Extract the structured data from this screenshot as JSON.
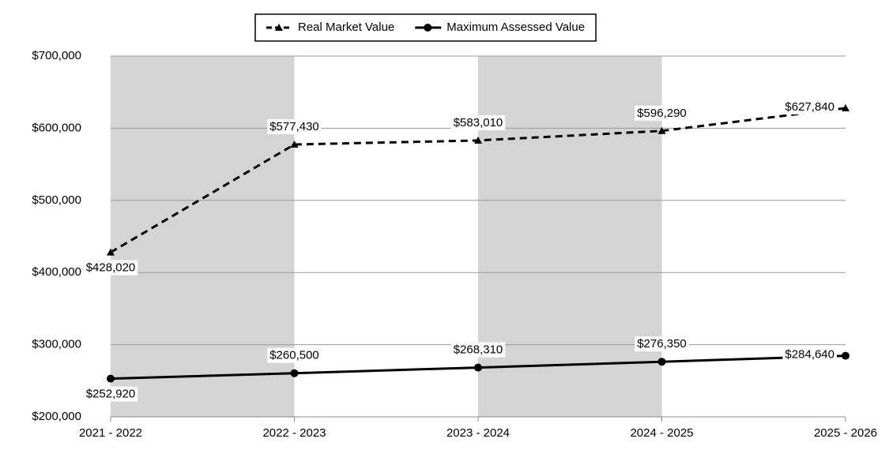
{
  "chart_data": {
    "type": "line",
    "categories": [
      "2021 - 2022",
      "2022 - 2023",
      "2023 - 2024",
      "2024 - 2025",
      "2025 - 2026"
    ],
    "series": [
      {
        "name": "Real Market Value",
        "color": "#000000",
        "dash": true,
        "marker": "triangle",
        "values": [
          428020,
          577430,
          583010,
          596290,
          627840
        ],
        "value_labels": [
          "$428,020",
          "$577,430",
          "$583,010",
          "$596,290",
          "$627,840"
        ]
      },
      {
        "name": "Maximum Assessed Value",
        "color": "#000000",
        "dash": false,
        "marker": "circle",
        "values": [
          252920,
          260500,
          268310,
          276350,
          284640
        ],
        "value_labels": [
          "$252,920",
          "$260,500",
          "$268,310",
          "$276,350",
          "$284,640"
        ]
      }
    ],
    "ylim": [
      200000,
      700000
    ],
    "yticks": [
      {
        "value": 200000,
        "label": "$200,000"
      },
      {
        "value": 300000,
        "label": "$300,000"
      },
      {
        "value": 400000,
        "label": "$400,000"
      },
      {
        "value": 500000,
        "label": "$500,000"
      },
      {
        "value": 600000,
        "label": "$600,000"
      },
      {
        "value": 700000,
        "label": "$700,000"
      }
    ],
    "grid": true,
    "legend": "top"
  }
}
